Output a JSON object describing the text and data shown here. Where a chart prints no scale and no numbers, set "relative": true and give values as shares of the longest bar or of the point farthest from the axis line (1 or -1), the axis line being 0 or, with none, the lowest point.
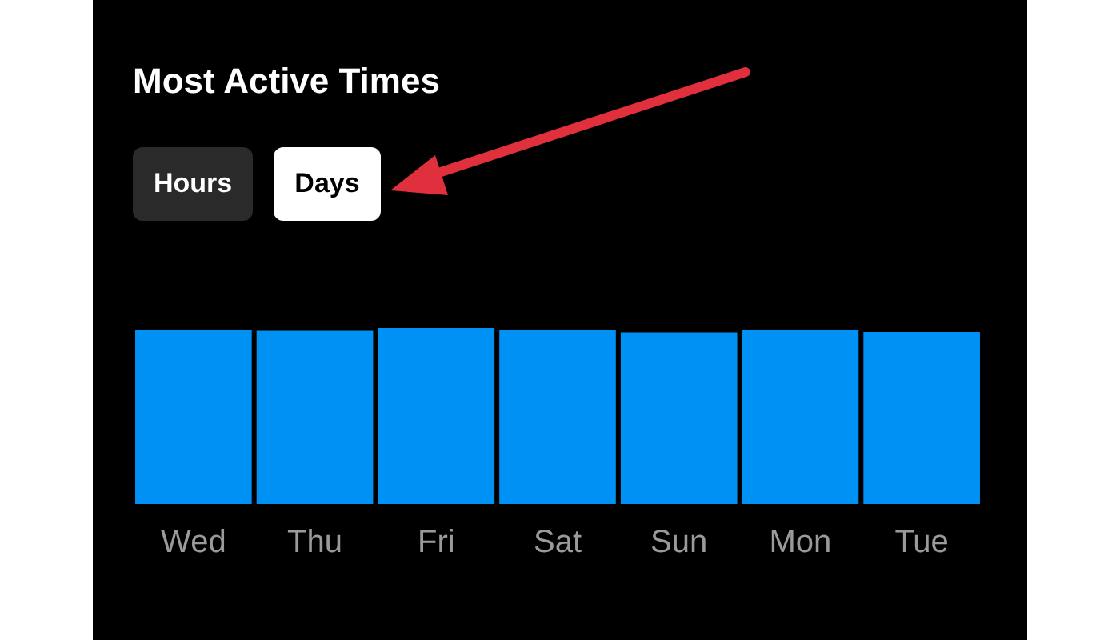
{
  "chart_data": {
    "type": "bar",
    "title": "Most Active Times",
    "annotations": [
      "Hours",
      "Days"
    ],
    "categories": [
      "Wed",
      "Thu",
      "Fri",
      "Sat",
      "Sun",
      "Mon",
      "Tue"
    ],
    "values": [
      0.99,
      0.984,
      1,
      0.99,
      0.975,
      0.99,
      0.977
    ],
    "color": "#0091f5",
    "relative": true
  }
}
